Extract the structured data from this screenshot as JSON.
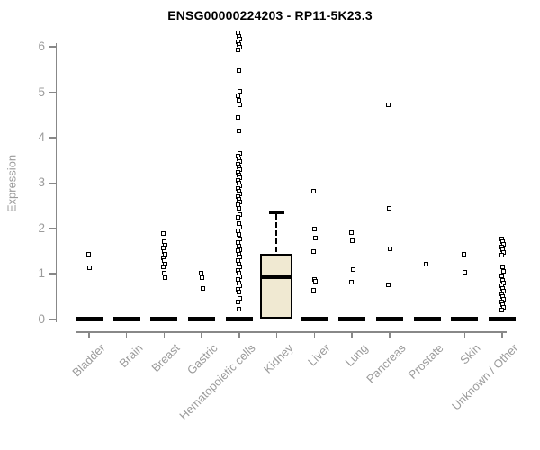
{
  "title": "ENSG00000224203 - RP11-5K23.3",
  "chart_data": {
    "type": "boxplot",
    "title": "ENSG00000224203 - RP11-5K23.3",
    "xlabel": "",
    "ylabel": "Expression",
    "ylim": [
      0,
      6.5
    ],
    "yticks": [
      0,
      1,
      2,
      3,
      4,
      5,
      6
    ],
    "grid": false,
    "legend": false,
    "categories": [
      "Bladder",
      "Brain",
      "Breast",
      "Gastric",
      "Hematopoietic cells",
      "Kidney",
      "Liver",
      "Lung",
      "Pancreas",
      "Prostate",
      "Skin",
      "Unknown / Other"
    ],
    "series": [
      {
        "category": "Bladder",
        "median": 0,
        "points": [
          1.43,
          1.14
        ]
      },
      {
        "category": "Brain",
        "median": 0,
        "points": []
      },
      {
        "category": "Breast",
        "median": 0,
        "points": [
          1.88,
          1.7,
          1.63,
          1.56,
          1.49,
          1.42,
          1.35,
          1.28,
          1.21,
          1.15,
          1.02,
          0.91
        ]
      },
      {
        "category": "Gastric",
        "median": 0,
        "points": [
          1.02,
          0.92,
          0.67
        ]
      },
      {
        "category": "Hematopoietic cells",
        "median": 0,
        "points": [
          6.3,
          6.24,
          6.18,
          6.12,
          6.06,
          6.0,
          5.94,
          5.48,
          5.02,
          4.92,
          4.82,
          4.72,
          4.45,
          4.15,
          3.65,
          3.59,
          3.53,
          3.47,
          3.41,
          3.35,
          3.29,
          3.23,
          3.17,
          3.11,
          3.05,
          2.99,
          2.93,
          2.87,
          2.81,
          2.75,
          2.69,
          2.63,
          2.57,
          2.51,
          2.45,
          2.3,
          2.24,
          2.1,
          2.02,
          1.94,
          1.86,
          1.76,
          1.68,
          1.6,
          1.52,
          1.5,
          1.43,
          1.36,
          1.29,
          1.22,
          1.15,
          1.08,
          1.01,
          0.94,
          0.87,
          0.8,
          0.73,
          0.66,
          0.59,
          0.45,
          0.38,
          0.22
        ]
      },
      {
        "category": "Kidney",
        "box": {
          "q1": 0,
          "median": 0.93,
          "q3": 1.43,
          "whisker_low": 0,
          "whisker_high": 2.35
        },
        "points": []
      },
      {
        "category": "Liver",
        "median": 0,
        "points": [
          2.81,
          1.98,
          1.78,
          1.49,
          0.87,
          0.83,
          0.63
        ]
      },
      {
        "category": "Lung",
        "median": 0,
        "points": [
          1.9,
          1.73,
          1.1,
          0.81
        ]
      },
      {
        "category": "Pancreas",
        "median": 0,
        "points": [
          4.72,
          2.44,
          1.55,
          0.75
        ]
      },
      {
        "category": "Prostate",
        "median": 0,
        "points": [
          1.22
        ]
      },
      {
        "category": "Skin",
        "median": 0,
        "points": [
          1.42,
          1.03
        ]
      },
      {
        "category": "Unknown / Other",
        "median": 0,
        "points": [
          1.76,
          1.7,
          1.64,
          1.58,
          1.52,
          1.46,
          1.4,
          1.15,
          1.05,
          0.95,
          0.85,
          0.79,
          0.73,
          0.67,
          0.61,
          0.55,
          0.49,
          0.43,
          0.37,
          0.31,
          0.25,
          0.2
        ]
      }
    ],
    "colors": {
      "title": "#000000",
      "axis": "#888888",
      "tick_label": "#9b9b9b",
      "point": "#000000",
      "zero_bar": "#000000",
      "box_fill": "#f0e9d2",
      "box_border": "#000000"
    }
  }
}
